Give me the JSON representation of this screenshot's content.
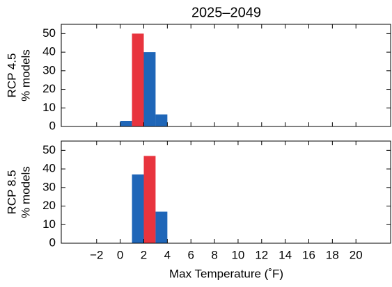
{
  "chart_data": [
    {
      "type": "histogram",
      "title": "2025–2049",
      "ylabel": [
        "RCP 4.5",
        "% models"
      ],
      "bins": [
        0,
        1,
        2,
        3,
        4
      ],
      "values": [
        3,
        50,
        40,
        6.5
      ],
      "colors": [
        "#1f66b8",
        "#e8343e",
        "#1f66b8",
        "#1f66b8"
      ],
      "xlim": [
        -5,
        23
      ],
      "ylim": [
        0,
        55
      ],
      "xticks": [
        {
          "value": -2,
          "label": "−2"
        },
        0,
        2,
        4,
        6,
        8,
        10,
        12,
        14,
        16,
        18,
        20
      ],
      "yticks": [
        0,
        10,
        20,
        30,
        40,
        50
      ],
      "show_xtick_labels": false
    },
    {
      "type": "histogram",
      "ylabel": [
        "RCP 8.5",
        "% models"
      ],
      "xlabel": "Max Temperature (˚F)",
      "bins": [
        1,
        2,
        3,
        4
      ],
      "values": [
        37,
        47,
        17
      ],
      "colors": [
        "#1f66b8",
        "#e8343e",
        "#1f66b8"
      ],
      "xlim": [
        -5,
        23
      ],
      "ylim": [
        0,
        55
      ],
      "xticks": [
        {
          "value": -2,
          "label": "−2"
        },
        0,
        2,
        4,
        6,
        8,
        10,
        12,
        14,
        16,
        18,
        20
      ],
      "yticks": [
        0,
        10,
        20,
        30,
        40,
        50
      ],
      "show_xtick_labels": true
    }
  ]
}
